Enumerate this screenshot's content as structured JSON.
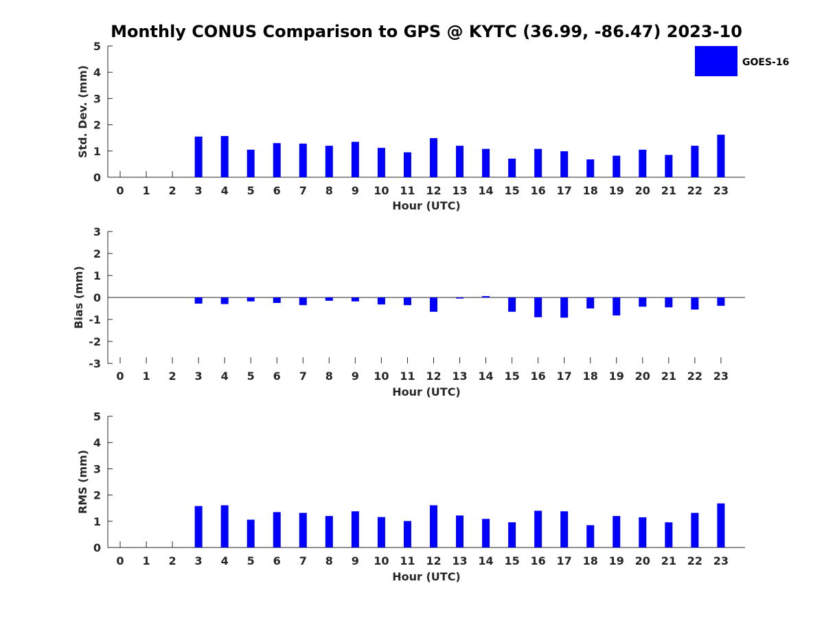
{
  "title": "Monthly CONUS Comparison to GPS @ KYTC (36.99, -86.47) 2023-10",
  "legend": {
    "label": "GOES-16",
    "placement": "top-right",
    "color": "#0000ff"
  },
  "chart_data": [
    {
      "type": "bar",
      "xlabel": "Hour (UTC)",
      "ylabel": "Std. Dev. (mm)",
      "ylim": [
        0,
        5
      ],
      "yticks": [
        "0",
        "1",
        "2",
        "3",
        "4",
        "5"
      ],
      "categories": [
        "0",
        "1",
        "2",
        "3",
        "4",
        "5",
        "6",
        "7",
        "8",
        "9",
        "10",
        "11",
        "12",
        "13",
        "14",
        "15",
        "16",
        "17",
        "18",
        "19",
        "20",
        "21",
        "22",
        "23"
      ],
      "series": [
        {
          "name": "GOES-16",
          "color": "#0000ff",
          "values": [
            null,
            null,
            null,
            1.55,
            1.57,
            1.05,
            1.3,
            1.28,
            1.2,
            1.35,
            1.12,
            0.95,
            1.49,
            1.2,
            1.08,
            0.71,
            1.08,
            0.99,
            0.68,
            0.82,
            1.05,
            0.85,
            1.2,
            1.62
          ]
        }
      ],
      "grid": false
    },
    {
      "type": "bar",
      "xlabel": "Hour (UTC)",
      "ylabel": "Bias (mm)",
      "ylim": [
        -3,
        3
      ],
      "yticks": [
        "-3",
        "-2",
        "-1",
        "0",
        "1",
        "2",
        "3"
      ],
      "categories": [
        "0",
        "1",
        "2",
        "3",
        "4",
        "5",
        "6",
        "7",
        "8",
        "9",
        "10",
        "11",
        "12",
        "13",
        "14",
        "15",
        "16",
        "17",
        "18",
        "19",
        "20",
        "21",
        "22",
        "23"
      ],
      "series": [
        {
          "name": "GOES-16",
          "color": "#0000ff",
          "values": [
            null,
            null,
            null,
            -0.28,
            -0.3,
            -0.18,
            -0.25,
            -0.35,
            -0.15,
            -0.18,
            -0.32,
            -0.35,
            -0.65,
            -0.05,
            0.06,
            -0.65,
            -0.9,
            -0.92,
            -0.5,
            -0.82,
            -0.42,
            -0.45,
            -0.55,
            -0.38
          ]
        }
      ],
      "grid": false
    },
    {
      "type": "bar",
      "xlabel": "Hour (UTC)",
      "ylabel": "RMS (mm)",
      "ylim": [
        0,
        5
      ],
      "yticks": [
        "0",
        "1",
        "2",
        "3",
        "4",
        "5"
      ],
      "categories": [
        "0",
        "1",
        "2",
        "3",
        "4",
        "5",
        "6",
        "7",
        "8",
        "9",
        "10",
        "11",
        "12",
        "13",
        "14",
        "15",
        "16",
        "17",
        "18",
        "19",
        "20",
        "21",
        "22",
        "23"
      ],
      "series": [
        {
          "name": "GOES-16",
          "color": "#0000ff",
          "values": [
            null,
            null,
            null,
            1.58,
            1.61,
            1.06,
            1.35,
            1.32,
            1.2,
            1.38,
            1.16,
            1.01,
            1.61,
            1.22,
            1.09,
            0.96,
            1.4,
            1.38,
            0.85,
            1.2,
            1.15,
            0.96,
            1.32,
            1.68
          ]
        }
      ],
      "grid": false
    }
  ]
}
